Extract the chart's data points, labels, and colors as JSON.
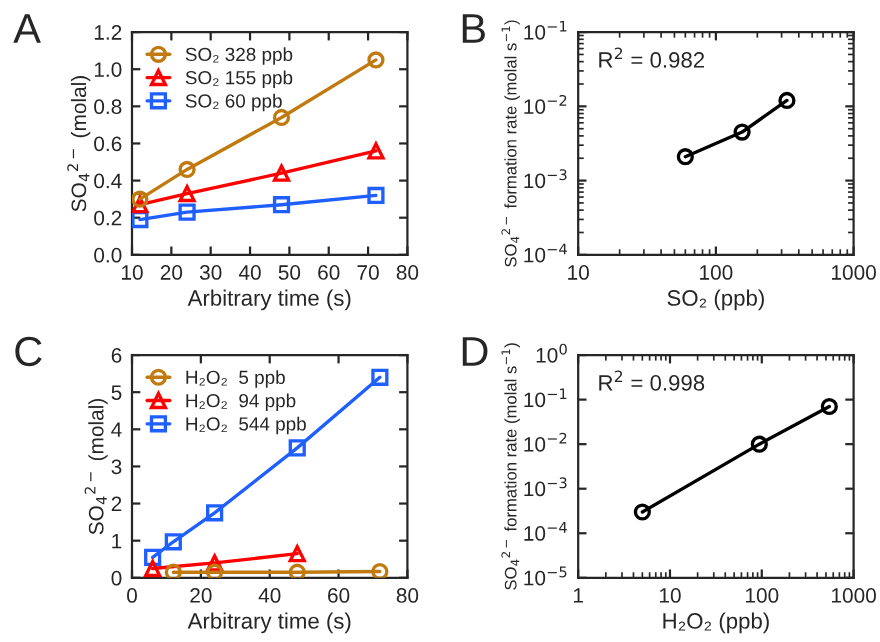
{
  "chart_data": [
    {
      "type": "line",
      "annotations": [
        "A"
      ],
      "xlabel": "Arbitrary time (s)",
      "ylabel": "SO$_{4}$$^{2−}$ (molal)",
      "xlim": [
        10,
        80
      ],
      "xticks": [
        10,
        20,
        30,
        40,
        50,
        60,
        70,
        80
      ],
      "ylim": [
        0,
        1.2
      ],
      "yticks": [
        {
          "value": 0,
          "label": "0.0"
        },
        0.2,
        0.4,
        0.6,
        0.8,
        {
          "value": 1,
          "label": "1.0"
        },
        1.2
      ],
      "grid": false,
      "legend": "top left",
      "series": [
        {
          "name": "SO₂ 328 ppb",
          "color": "#c07a10",
          "marker": "circle",
          "x": [
            12,
            24,
            48,
            72
          ],
          "values": [
            0.3,
            0.46,
            0.74,
            1.05
          ],
          "errors": [
            0.03,
            null,
            null,
            null
          ]
        },
        {
          "name": "SO₂ 155 ppb",
          "color": "#ff0000",
          "marker": "triangle",
          "x": [
            12,
            24,
            48,
            72
          ],
          "values": [
            0.27,
            0.33,
            0.44,
            0.56
          ]
        },
        {
          "name": "SO₂ 60 ppb",
          "color": "#1f5fff",
          "marker": "square",
          "x": [
            12,
            24,
            48,
            72
          ],
          "values": [
            0.19,
            0.23,
            0.27,
            0.32
          ]
        }
      ]
    },
    {
      "type": "line",
      "annotations": [
        "B",
        "R$^{2}$ = 0.982"
      ],
      "xlabel": "SO₂ (ppb)",
      "ylabel": "SO$_{4}$$^{2−}$ formation rate (molal s$^{−1}$)",
      "log": "xy",
      "xlim": [
        10,
        1000
      ],
      "xticks": [
        10,
        100,
        1000
      ],
      "ylim": [
        0.0001,
        0.1
      ],
      "yticks": [
        {
          "value": 0.0001,
          "label": "10$^{−4}$"
        },
        {
          "value": 0.001,
          "label": "10$^{−3}$"
        },
        {
          "value": 0.01,
          "label": "10$^{−2}$"
        },
        {
          "value": 0.1,
          "label": "10$^{−1}$"
        }
      ],
      "grid": false,
      "series": [
        {
          "color": "#000000",
          "marker": "circle",
          "x": [
            60,
            155,
            328
          ],
          "values": [
            0.0021,
            0.0045,
            0.012
          ]
        }
      ]
    },
    {
      "type": "line",
      "annotations": [
        "C"
      ],
      "xlabel": "Arbitrary time (s)",
      "ylabel": "SO$_{4}$$^{2−}$ (molal)",
      "xlim": [
        0,
        80
      ],
      "xticks": [
        0,
        20,
        40,
        60,
        80
      ],
      "ylim": [
        0,
        6
      ],
      "yticks": [
        0,
        1,
        2,
        3,
        4,
        5,
        6
      ],
      "grid": false,
      "legend": "top left",
      "series": [
        {
          "name": "H₂O₂  5 ppb",
          "color": "#c07a10",
          "marker": "circle",
          "x": [
            12,
            24,
            48,
            72
          ],
          "values": [
            0.15,
            0.15,
            0.15,
            0.17
          ]
        },
        {
          "name": "H₂O₂  94 ppb",
          "color": "#ff0000",
          "marker": "triangle",
          "x": [
            6,
            24,
            48
          ],
          "values": [
            0.25,
            0.4,
            0.65
          ]
        },
        {
          "name": "H₂O₂  544 ppb",
          "color": "#1f5fff",
          "marker": "square",
          "x": [
            6,
            12,
            24,
            48,
            72
          ],
          "values": [
            0.55,
            0.97,
            1.75,
            3.5,
            5.4
          ]
        }
      ]
    },
    {
      "type": "line",
      "annotations": [
        "D",
        "R$^{2}$ = 0.998"
      ],
      "xlabel": "H₂O₂ (ppb)",
      "ylabel": "SO$_{4}$$^{2−}$ formation rate (molal s$^{−1}$)",
      "log": "xy",
      "xlim": [
        1,
        1000
      ],
      "xticks": [
        1,
        10,
        100,
        1000
      ],
      "ylim": [
        1e-05,
        1
      ],
      "yticks": [
        {
          "value": 1e-05,
          "label": "10$^{−5}$"
        },
        {
          "value": 0.0001,
          "label": "10$^{−4}$"
        },
        {
          "value": 0.001,
          "label": "10$^{−3}$"
        },
        {
          "value": 0.01,
          "label": "10$^{−2}$"
        },
        {
          "value": 0.1,
          "label": "10$^{−1}$"
        },
        {
          "value": 1,
          "label": "10$^{0}$"
        }
      ],
      "grid": false,
      "series": [
        {
          "color": "#000000",
          "marker": "circle",
          "x": [
            5,
            94,
            544
          ],
          "values": [
            0.0003,
            0.01,
            0.07
          ]
        }
      ]
    }
  ]
}
